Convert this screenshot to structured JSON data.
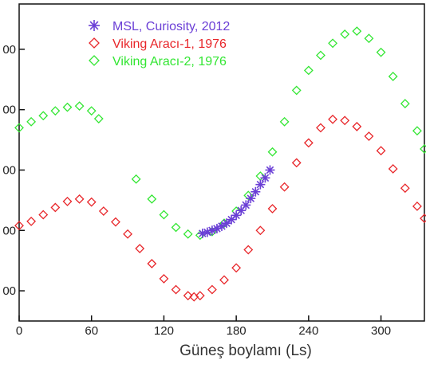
{
  "chart_data": {
    "type": "scatter",
    "xlabel": "Güneş boylamı (Ls)",
    "ylabel": "",
    "xlim": [
      0,
      336
    ],
    "ylim": [
      650,
      1175
    ],
    "x_ticks": [
      0,
      60,
      120,
      180,
      240,
      300
    ],
    "x_tick_labels": [
      "0",
      "60",
      "120",
      "180",
      "240",
      "300"
    ],
    "y_ticks": [
      700,
      800,
      900,
      1000,
      1100
    ],
    "y_tick_labels": [
      "00",
      "00",
      "00",
      "00",
      "00"
    ],
    "grid": false,
    "legend_position": "top-left",
    "series": [
      {
        "name": "MSL, Curiosity, 2012",
        "marker": "asterisk",
        "color": "#6b3fd6",
        "x": [
          152,
          156,
          160,
          164,
          168,
          172,
          176,
          180,
          184,
          188,
          192,
          196,
          200,
          204,
          208
        ],
        "y": [
          795,
          797,
          800,
          803,
          807,
          812,
          818,
          825,
          833,
          842,
          853,
          864,
          876,
          887,
          900
        ]
      },
      {
        "name": "Viking Aracı-1, 1976",
        "marker": "diamond",
        "color": "#e8262a",
        "x": [
          0,
          10,
          20,
          30,
          40,
          50,
          60,
          70,
          80,
          90,
          100,
          110,
          120,
          130,
          140,
          145,
          150,
          160,
          170,
          180,
          190,
          200,
          210,
          220,
          230,
          240,
          250,
          260,
          270,
          280,
          290,
          300,
          310,
          320,
          330,
          336
        ],
        "y": [
          808,
          815,
          826,
          838,
          848,
          852,
          847,
          832,
          814,
          794,
          770,
          745,
          720,
          702,
          692,
          690,
          692,
          702,
          718,
          738,
          768,
          800,
          836,
          872,
          912,
          945,
          970,
          984,
          982,
          972,
          956,
          932,
          902,
          870,
          840,
          820
        ]
      },
      {
        "name": "Viking Aracı-2, 1976",
        "marker": "diamond",
        "color": "#33e633",
        "x": [
          0,
          10,
          20,
          30,
          40,
          50,
          60,
          66,
          97,
          110,
          120,
          130,
          140,
          150,
          160,
          170,
          180,
          190,
          200,
          210,
          220,
          230,
          240,
          250,
          260,
          270,
          280,
          290,
          300,
          310,
          320,
          330,
          336
        ],
        "y": [
          970,
          980,
          990,
          998,
          1004,
          1006,
          998,
          985,
          885,
          852,
          826,
          805,
          794,
          792,
          798,
          812,
          832,
          858,
          890,
          930,
          980,
          1032,
          1065,
          1090,
          1110,
          1125,
          1130,
          1118,
          1095,
          1055,
          1010,
          965,
          935
        ]
      }
    ]
  }
}
